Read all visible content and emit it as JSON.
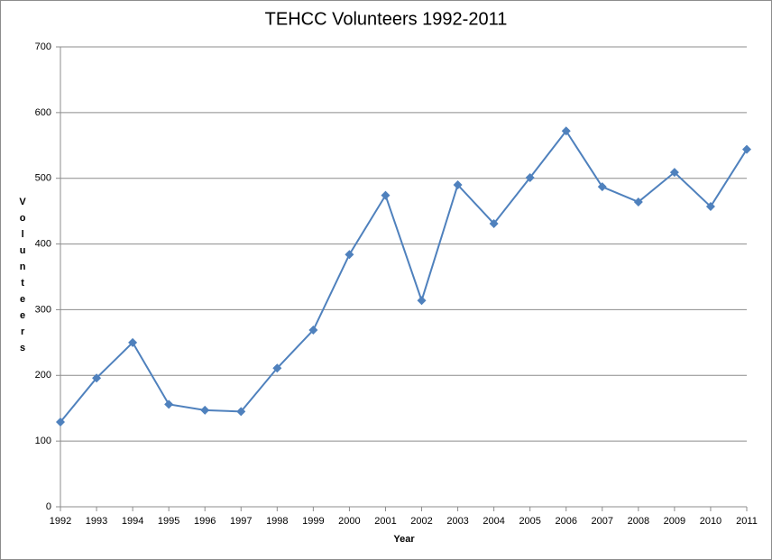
{
  "chart_data": {
    "type": "line",
    "title": "TEHCC Volunteers 1992-2011",
    "x_label": "Year",
    "y_label": "Volunteers",
    "x": [
      1992,
      1993,
      1994,
      1995,
      1996,
      1997,
      1998,
      1999,
      2000,
      2001,
      2002,
      2003,
      2004,
      2005,
      2006,
      2007,
      2008,
      2009,
      2010,
      2011
    ],
    "series": [
      {
        "name": "Volunteers",
        "color": "#4f81bd",
        "values": [
          129,
          196,
          250,
          156,
          147,
          145,
          211,
          269,
          384,
          474,
          314,
          490,
          431,
          501,
          572,
          487,
          464,
          509,
          457,
          544
        ]
      }
    ],
    "xlim": [
      1992,
      2011
    ],
    "xticks": [
      1992,
      1993,
      1994,
      1995,
      1996,
      1997,
      1998,
      1999,
      2000,
      2001,
      2002,
      2003,
      2004,
      2005,
      2006,
      2007,
      2008,
      2009,
      2010,
      2011
    ],
    "ylim": [
      0,
      700
    ],
    "yticks": [
      0,
      100,
      200,
      300,
      400,
      500,
      600,
      700
    ],
    "grid": true
  }
}
